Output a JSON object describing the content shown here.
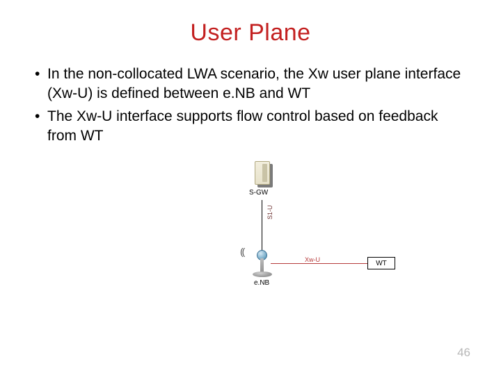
{
  "title": "User Plane",
  "title_color": "#c32020",
  "bullets": [
    "In the non-collocated LWA scenario, the Xw user plane interface (Xw-U) is defined between e.NB and WT",
    "The Xw-U interface supports flow control based on feedback from WT"
  ],
  "diagram": {
    "sgw_label": "S-GW",
    "s1u_label": "S1-U",
    "enb_label": "e.NB",
    "xwu_label": "Xw-U",
    "xwu_color": "#b63a3a",
    "wt_label": "WT",
    "line_color_v": "#000000"
  },
  "page_number": "46",
  "page_number_color": "#b7b7b7"
}
